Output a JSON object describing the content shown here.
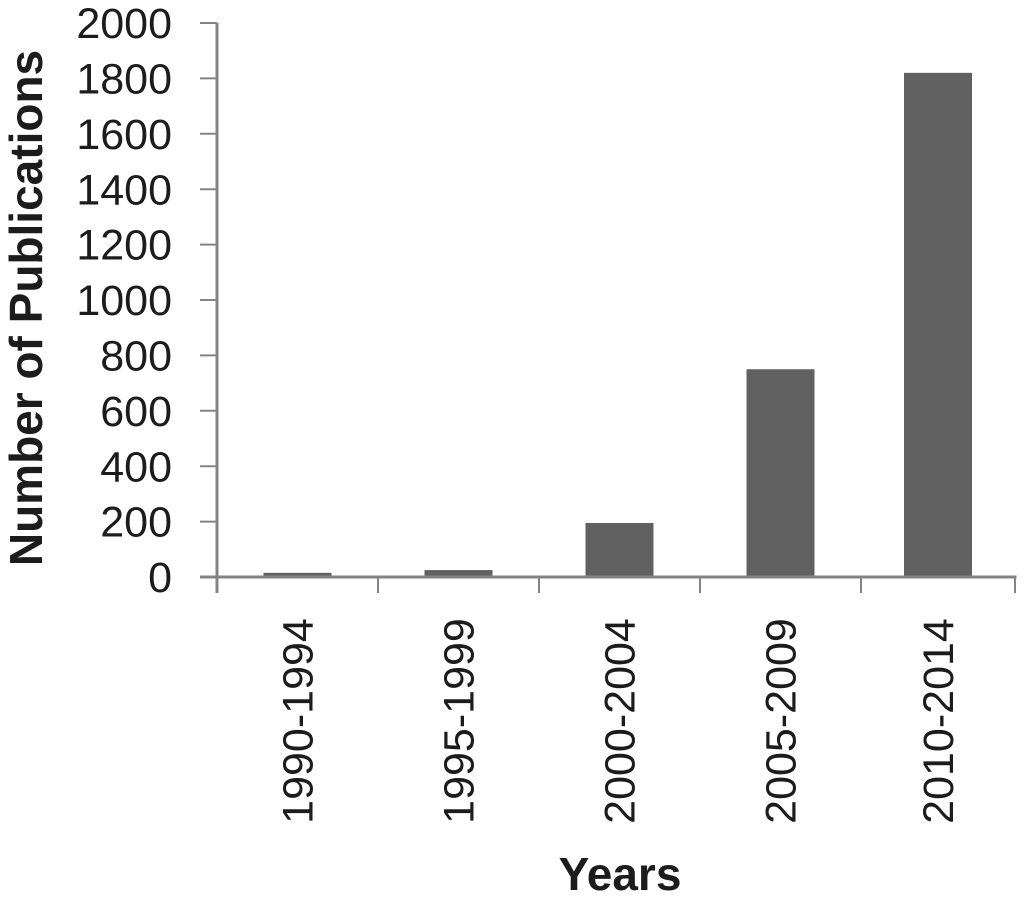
{
  "chart_data": {
    "type": "bar",
    "title": "",
    "categories": [
      "1990-1994",
      "1995-1999",
      "2000-2004",
      "2005-2009",
      "2010-2014"
    ],
    "values": [
      15,
      25,
      195,
      750,
      1820
    ],
    "xlabel": "Years",
    "ylabel": "Number of Publications",
    "ylim": [
      0,
      2000
    ],
    "ytick_values": [
      0,
      200,
      400,
      600,
      800,
      1000,
      1200,
      1400,
      1600,
      1800,
      2000
    ],
    "grid": false,
    "legend": "none",
    "bar_color": "#616161",
    "axis_color": "#848484",
    "text_color": "#1c1c1c"
  }
}
